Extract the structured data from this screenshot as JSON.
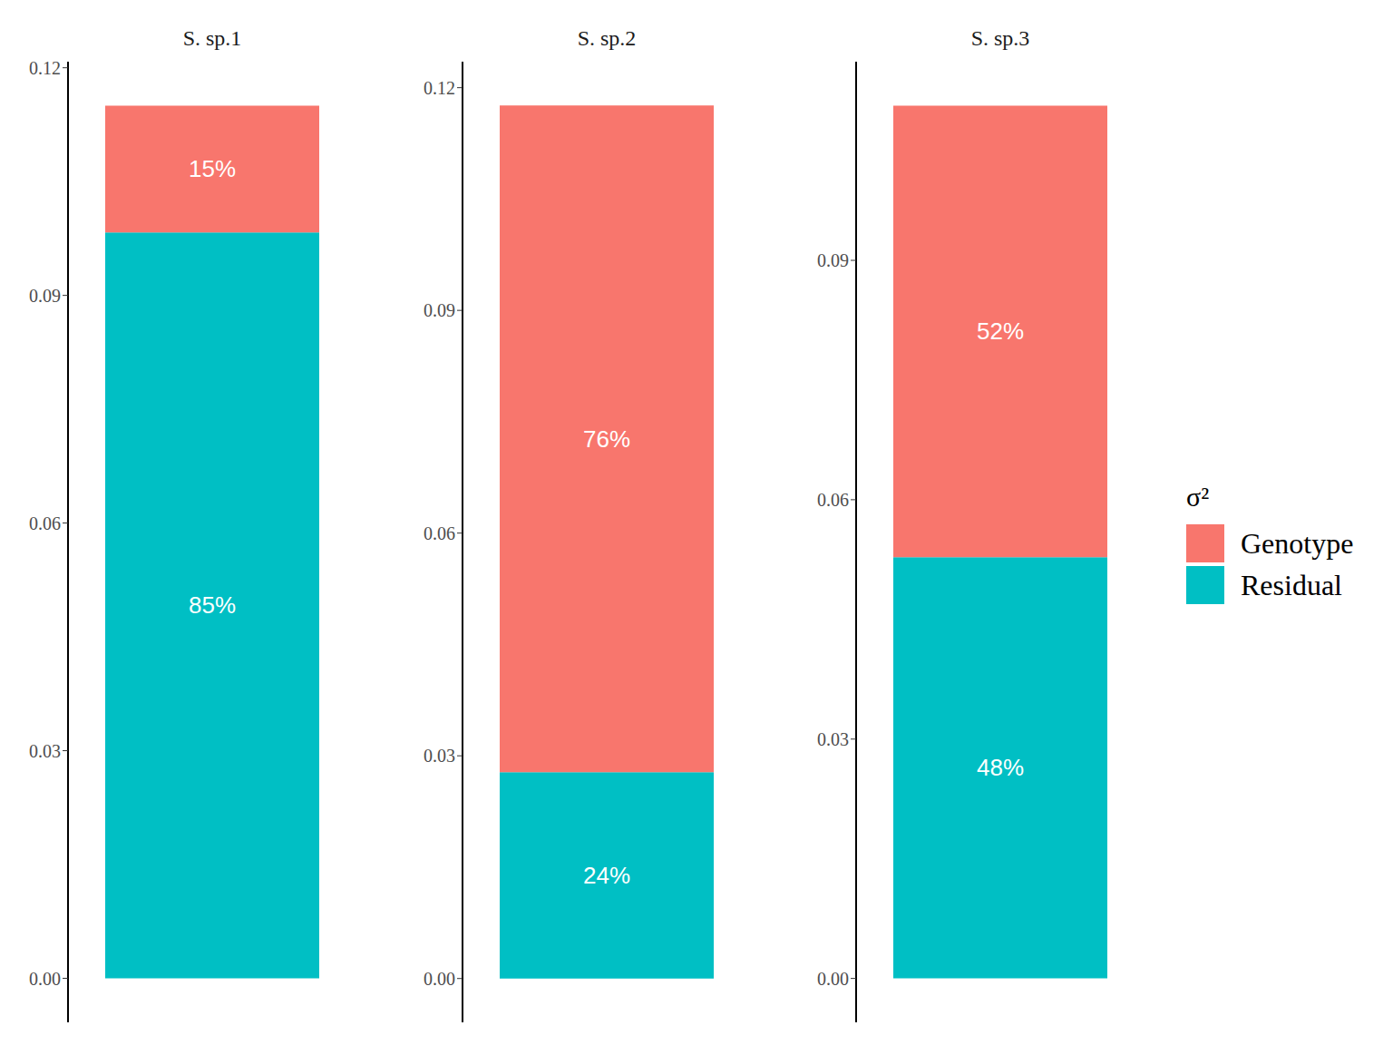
{
  "chart_data": [
    {
      "type": "bar",
      "title": "S. sp.1",
      "stacked": true,
      "categories": [
        null
      ],
      "tick_labels": "y",
      "ylim": [
        -0.0058,
        0.1208
      ],
      "yticks": [
        {
          "value": 0,
          "label": "0.00"
        },
        {
          "value": 0.03,
          "label": "0.03"
        },
        {
          "value": 0.06,
          "label": "0.06"
        },
        {
          "value": 0.09,
          "label": "0.09"
        },
        {
          "value": 0.12,
          "label": "0.12"
        }
      ],
      "series": [
        {
          "name": "Genotype",
          "color": "#F8766D",
          "values": [
            0.0167
          ],
          "labels": [
            "15%"
          ]
        },
        {
          "name": "Residual",
          "color": "#00BFC4",
          "values": [
            0.0983
          ],
          "labels": [
            "85%"
          ]
        }
      ]
    },
    {
      "type": "bar",
      "title": "S. sp.2",
      "stacked": true,
      "categories": [
        null
      ],
      "tick_labels": "y",
      "ylim": [
        -0.0059,
        0.1235
      ],
      "yticks": [
        {
          "value": 0,
          "label": "0.00"
        },
        {
          "value": 0.03,
          "label": "0.03"
        },
        {
          "value": 0.06,
          "label": "0.06"
        },
        {
          "value": 0.09,
          "label": "0.09"
        },
        {
          "value": 0.12,
          "label": "0.12"
        }
      ],
      "series": [
        {
          "name": "Genotype",
          "color": "#F8766D",
          "values": [
            0.0898
          ],
          "labels": [
            "76%"
          ]
        },
        {
          "name": "Residual",
          "color": "#00BFC4",
          "values": [
            0.0278
          ],
          "labels": [
            "24%"
          ]
        }
      ]
    },
    {
      "type": "bar",
      "title": "S. sp.3",
      "stacked": true,
      "categories": [
        null
      ],
      "tick_labels": "y",
      "ylim": [
        -0.0055,
        0.1149
      ],
      "legend": "right",
      "yticks": [
        {
          "value": 0,
          "label": "0.00"
        },
        {
          "value": 0.03,
          "label": "0.03"
        },
        {
          "value": 0.06,
          "label": "0.06"
        },
        {
          "value": 0.09,
          "label": "0.09"
        }
      ],
      "series": [
        {
          "name": "Genotype",
          "color": "#F8766D",
          "values": [
            0.0566
          ],
          "labels": [
            "52%"
          ]
        },
        {
          "name": "Residual",
          "color": "#00BFC4",
          "values": [
            0.0528
          ],
          "labels": [
            "48%"
          ]
        }
      ]
    }
  ],
  "legend_title": "σ²"
}
